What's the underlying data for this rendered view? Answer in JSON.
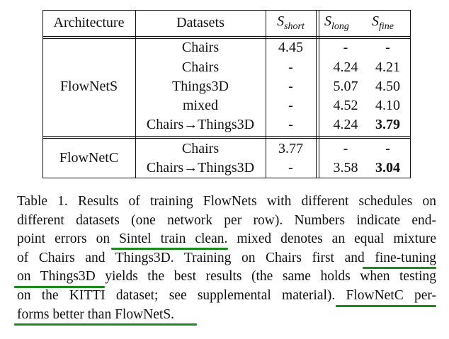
{
  "table": {
    "headers": {
      "architecture": "Architecture",
      "datasets": "Datasets",
      "s_short": {
        "base": "S",
        "sub": "short"
      },
      "s_long": {
        "base": "S",
        "sub": "long"
      },
      "s_fine": {
        "base": "S",
        "sub": "fine"
      }
    },
    "groups": [
      {
        "architecture": "FlowNetS",
        "rows": [
          {
            "dataset": "Chairs",
            "s_short": "4.45",
            "s_long": "-",
            "s_fine": "-"
          },
          {
            "dataset": "Chairs",
            "s_short": "-",
            "s_long": "4.24",
            "s_fine": "4.21"
          },
          {
            "dataset": "Things3D",
            "s_short": "-",
            "s_long": "5.07",
            "s_fine": "4.50"
          },
          {
            "dataset": "mixed",
            "s_short": "-",
            "s_long": "4.52",
            "s_fine": "4.10"
          },
          {
            "dataset": "Chairs→Things3D",
            "s_short": "-",
            "s_long": "4.24",
            "s_fine": "3.79",
            "fine_bold": true
          }
        ]
      },
      {
        "architecture": "FlowNetC",
        "rows": [
          {
            "dataset": "Chairs",
            "s_short": "3.77",
            "s_long": "-",
            "s_fine": "-"
          },
          {
            "dataset": "Chairs→Things3D",
            "s_short": "-",
            "s_long": "3.58",
            "s_fine": "3.04",
            "fine_bold": true
          }
        ]
      }
    ]
  },
  "caption": {
    "lines": [
      "Table 1.  Results of training FlowNets with different schedules on",
      "different datasets (one network per row).  Numbers indicate end-",
      "point errors on Sintel train clean. mixed denotes an equal mixture",
      "of Chairs and Things3D. Training on Chairs first and fine-tuning",
      "on Things3D yields the best results (the same holds when testing",
      "on the KITTI dataset; see supplemental material).  FlowNetC per-",
      "forms better than FlowNetS."
    ]
  },
  "colors": {
    "underline": "#1a8a1a",
    "text": "#111111"
  }
}
